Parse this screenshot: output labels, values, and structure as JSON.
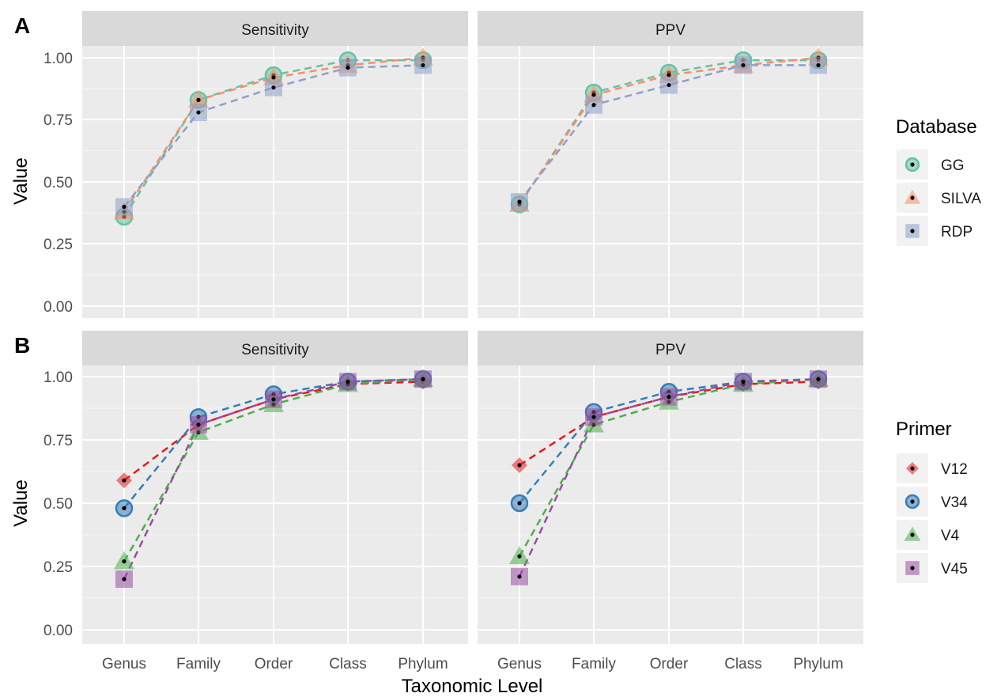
{
  "figure": {
    "xlabel": "Taxonomic Level",
    "ylabel": "Value"
  },
  "chart_data": [
    {
      "type": "line",
      "tag": "A",
      "legend_title": "Database",
      "legend_placement": "right",
      "grid": true,
      "x": [
        "Genus",
        "Family",
        "Order",
        "Class",
        "Phylum"
      ],
      "ylim": [
        0,
        1
      ],
      "yticks": [
        "0.00",
        "0.25",
        "0.50",
        "0.75",
        "1.00"
      ],
      "facets": [
        {
          "title": "Sensitivity",
          "series": [
            {
              "name": "GG",
              "values": [
                0.36,
                0.83,
                0.93,
                0.99,
                0.99
              ]
            },
            {
              "name": "SILVA",
              "values": [
                0.38,
                0.83,
                0.92,
                0.97,
                1.0
              ]
            },
            {
              "name": "RDP",
              "values": [
                0.4,
                0.78,
                0.88,
                0.96,
                0.97
              ]
            }
          ]
        },
        {
          "title": "PPV",
          "series": [
            {
              "name": "GG",
              "values": [
                0.41,
                0.86,
                0.94,
                0.99,
                0.99
              ]
            },
            {
              "name": "SILVA",
              "values": [
                0.41,
                0.85,
                0.93,
                0.97,
                1.0
              ]
            },
            {
              "name": "RDP",
              "values": [
                0.42,
                0.81,
                0.89,
                0.97,
                0.97
              ]
            }
          ]
        }
      ],
      "series_style": [
        {
          "name": "GG",
          "color": "#66c2a5",
          "shape": "circle"
        },
        {
          "name": "SILVA",
          "color": "#fc8d62",
          "shape": "triangle"
        },
        {
          "name": "RDP",
          "color": "#8da0cb",
          "shape": "square"
        }
      ]
    },
    {
      "type": "line",
      "tag": "B",
      "legend_title": "Primer",
      "legend_placement": "right",
      "grid": true,
      "x": [
        "Genus",
        "Family",
        "Order",
        "Class",
        "Phylum"
      ],
      "ylim": [
        0,
        1
      ],
      "yticks": [
        "0.00",
        "0.25",
        "0.50",
        "0.75",
        "1.00"
      ],
      "facets": [
        {
          "title": "Sensitivity",
          "series": [
            {
              "name": "V12",
              "values": [
                0.59,
                0.81,
                0.91,
                0.97,
                0.98
              ]
            },
            {
              "name": "V34",
              "values": [
                0.48,
                0.84,
                0.93,
                0.98,
                0.99
              ]
            },
            {
              "name": "V4",
              "values": [
                0.27,
                0.78,
                0.89,
                0.97,
                0.99
              ]
            },
            {
              "name": "V45",
              "values": [
                0.2,
                0.81,
                0.91,
                0.98,
                0.99
              ]
            }
          ]
        },
        {
          "title": "PPV",
          "series": [
            {
              "name": "V12",
              "values": [
                0.65,
                0.84,
                0.92,
                0.97,
                0.98
              ]
            },
            {
              "name": "V34",
              "values": [
                0.5,
                0.86,
                0.94,
                0.98,
                0.99
              ]
            },
            {
              "name": "V4",
              "values": [
                0.29,
                0.81,
                0.9,
                0.97,
                0.99
              ]
            },
            {
              "name": "V45",
              "values": [
                0.21,
                0.84,
                0.92,
                0.98,
                0.99
              ]
            }
          ]
        }
      ],
      "series_style": [
        {
          "name": "V12",
          "color": "#e41a1c",
          "shape": "diamond"
        },
        {
          "name": "V34",
          "color": "#377eb8",
          "shape": "circle"
        },
        {
          "name": "V4",
          "color": "#4daf4a",
          "shape": "triangle"
        },
        {
          "name": "V45",
          "color": "#984ea3",
          "shape": "square"
        }
      ]
    }
  ]
}
